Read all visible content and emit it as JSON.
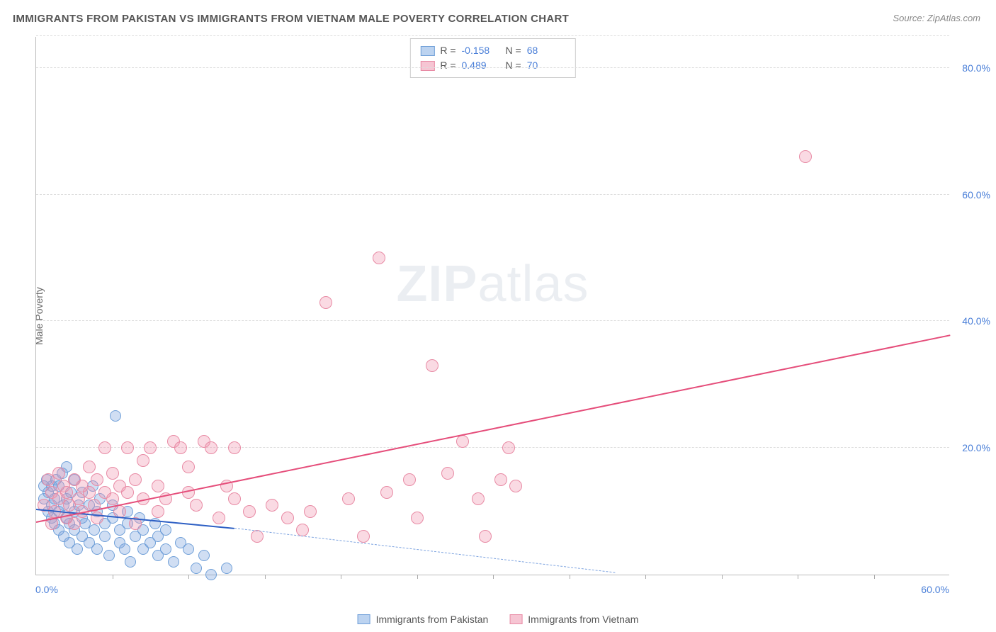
{
  "title": "IMMIGRANTS FROM PAKISTAN VS IMMIGRANTS FROM VIETNAM MALE POVERTY CORRELATION CHART",
  "source": "Source: ZipAtlas.com",
  "watermark": {
    "bold": "ZIP",
    "light": "atlas"
  },
  "ylabel": "Male Poverty",
  "chart": {
    "type": "scatter",
    "xlim": [
      0,
      60
    ],
    "ylim": [
      0,
      85
    ],
    "x_tick_labels": [
      {
        "v": 0,
        "label": "0.0%"
      },
      {
        "v": 60,
        "label": "60.0%"
      }
    ],
    "y_tick_labels": [
      {
        "v": 20,
        "label": "20.0%"
      },
      {
        "v": 40,
        "label": "40.0%"
      },
      {
        "v": 60,
        "label": "60.0%"
      },
      {
        "v": 80,
        "label": "80.0%"
      }
    ],
    "x_minor_ticks": [
      5,
      10,
      15,
      20,
      25,
      30,
      35,
      40,
      45,
      50,
      55
    ],
    "h_gridlines": [
      20,
      40,
      60,
      80,
      85
    ],
    "background_color": "#ffffff",
    "grid_color": "#dddddd",
    "axis_color": "#bbbbbb",
    "value_text_color": "#4a7fd8",
    "series": [
      {
        "name": "Immigrants from Pakistan",
        "marker_fill": "rgba(120,160,220,0.35)",
        "marker_stroke": "#6f9fd8",
        "legend_fill": "#bcd3f0",
        "legend_border": "#6f9fd8",
        "R": "-0.158",
        "N": "68",
        "marker_radius": 8,
        "trend": {
          "x1": 0,
          "y1": 10.5,
          "x2": 13,
          "y2": 7.5,
          "solid_color": "#2d5fc4"
        },
        "trend_dash": {
          "x1": 13,
          "y1": 7.5,
          "x2": 38,
          "y2": 0.5,
          "color": "#7ea4e0"
        },
        "points": [
          [
            0.5,
            12
          ],
          [
            0.5,
            14
          ],
          [
            0.7,
            15
          ],
          [
            0.8,
            10
          ],
          [
            0.8,
            13
          ],
          [
            1.0,
            9
          ],
          [
            1.0,
            11
          ],
          [
            1.0,
            14
          ],
          [
            1.2,
            8
          ],
          [
            1.2,
            12
          ],
          [
            1.3,
            15
          ],
          [
            1.5,
            7
          ],
          [
            1.5,
            10
          ],
          [
            1.5,
            14
          ],
          [
            1.7,
            16
          ],
          [
            1.8,
            6
          ],
          [
            1.8,
            11
          ],
          [
            2.0,
            9
          ],
          [
            2.0,
            12
          ],
          [
            2.0,
            17
          ],
          [
            2.2,
            5
          ],
          [
            2.2,
            8
          ],
          [
            2.3,
            13
          ],
          [
            2.5,
            10
          ],
          [
            2.5,
            7
          ],
          [
            2.5,
            15
          ],
          [
            2.7,
            4
          ],
          [
            2.8,
            11
          ],
          [
            3.0,
            9
          ],
          [
            3.0,
            6
          ],
          [
            3.0,
            13
          ],
          [
            3.2,
            8
          ],
          [
            3.5,
            11
          ],
          [
            3.5,
            5
          ],
          [
            3.7,
            14
          ],
          [
            3.8,
            7
          ],
          [
            4.0,
            10
          ],
          [
            4.0,
            4
          ],
          [
            4.2,
            12
          ],
          [
            4.5,
            8
          ],
          [
            4.5,
            6
          ],
          [
            4.8,
            3
          ],
          [
            5.0,
            9
          ],
          [
            5.0,
            11
          ],
          [
            5.2,
            25
          ],
          [
            5.5,
            5
          ],
          [
            5.5,
            7
          ],
          [
            5.8,
            4
          ],
          [
            6.0,
            8
          ],
          [
            6.0,
            10
          ],
          [
            6.2,
            2
          ],
          [
            6.5,
            6
          ],
          [
            6.8,
            9
          ],
          [
            7.0,
            4
          ],
          [
            7.0,
            7
          ],
          [
            7.5,
            5
          ],
          [
            7.8,
            8
          ],
          [
            8.0,
            3
          ],
          [
            8.0,
            6
          ],
          [
            8.5,
            4
          ],
          [
            8.5,
            7
          ],
          [
            9.0,
            2
          ],
          [
            9.5,
            5
          ],
          [
            10.0,
            4
          ],
          [
            10.5,
            1
          ],
          [
            11.0,
            3
          ],
          [
            11.5,
            0
          ],
          [
            12.5,
            1
          ]
        ]
      },
      {
        "name": "Immigrants from Vietnam",
        "marker_fill": "rgba(240,150,175,0.35)",
        "marker_stroke": "#e88ba5",
        "legend_fill": "#f6c5d3",
        "legend_border": "#e88ba5",
        "R": "0.489",
        "N": "70",
        "marker_radius": 9,
        "trend": {
          "x1": 0,
          "y1": 8.5,
          "x2": 60,
          "y2": 38,
          "solid_color": "#e54d7a"
        },
        "points": [
          [
            0.5,
            11
          ],
          [
            0.8,
            15
          ],
          [
            1.0,
            8
          ],
          [
            1.0,
            13
          ],
          [
            1.2,
            10
          ],
          [
            1.5,
            12
          ],
          [
            1.5,
            16
          ],
          [
            1.8,
            14
          ],
          [
            2.0,
            9
          ],
          [
            2.0,
            13
          ],
          [
            2.2,
            11
          ],
          [
            2.5,
            15
          ],
          [
            2.5,
            8
          ],
          [
            2.8,
            12
          ],
          [
            3.0,
            10
          ],
          [
            3.0,
            14
          ],
          [
            3.5,
            13
          ],
          [
            3.5,
            17
          ],
          [
            3.8,
            11
          ],
          [
            4.0,
            9
          ],
          [
            4.0,
            15
          ],
          [
            4.5,
            13
          ],
          [
            4.5,
            20
          ],
          [
            5.0,
            12
          ],
          [
            5.0,
            16
          ],
          [
            5.5,
            14
          ],
          [
            5.5,
            10
          ],
          [
            6.0,
            20
          ],
          [
            6.0,
            13
          ],
          [
            6.5,
            15
          ],
          [
            6.5,
            8
          ],
          [
            7.0,
            12
          ],
          [
            7.0,
            18
          ],
          [
            7.5,
            20
          ],
          [
            8.0,
            10
          ],
          [
            8.0,
            14
          ],
          [
            8.5,
            12
          ],
          [
            9.0,
            21
          ],
          [
            9.5,
            20
          ],
          [
            10.0,
            13
          ],
          [
            10.0,
            17
          ],
          [
            10.5,
            11
          ],
          [
            11.0,
            21
          ],
          [
            11.5,
            20
          ],
          [
            12.0,
            9
          ],
          [
            12.5,
            14
          ],
          [
            13.0,
            12
          ],
          [
            13.0,
            20
          ],
          [
            14.0,
            10
          ],
          [
            14.5,
            6
          ],
          [
            15.5,
            11
          ],
          [
            16.5,
            9
          ],
          [
            17.5,
            7
          ],
          [
            18.0,
            10
          ],
          [
            19.0,
            43
          ],
          [
            20.5,
            12
          ],
          [
            21.5,
            6
          ],
          [
            22.5,
            50
          ],
          [
            23.0,
            13
          ],
          [
            24.5,
            15
          ],
          [
            25.0,
            9
          ],
          [
            26.0,
            33
          ],
          [
            27.0,
            16
          ],
          [
            28.0,
            21
          ],
          [
            29.0,
            12
          ],
          [
            29.5,
            6
          ],
          [
            30.5,
            15
          ],
          [
            31.0,
            20
          ],
          [
            31.5,
            14
          ],
          [
            50.5,
            66
          ]
        ]
      }
    ]
  },
  "legend_bottom": [
    {
      "label": "Immigrants from Pakistan",
      "fill": "#bcd3f0",
      "border": "#6f9fd8"
    },
    {
      "label": "Immigrants from Vietnam",
      "fill": "#f6c5d3",
      "border": "#e88ba5"
    }
  ]
}
